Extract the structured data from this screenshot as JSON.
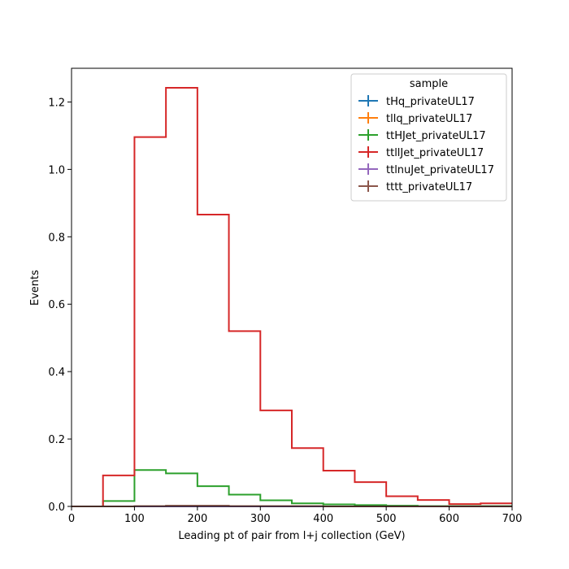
{
  "chart_data": {
    "type": "histogram-step",
    "xlabel": "Leading pt of pair from l+j collection (GeV)",
    "ylabel": "Events",
    "xlim": [
      0,
      700
    ],
    "ylim": [
      0,
      1.3
    ],
    "xticks": [
      0,
      100,
      200,
      300,
      400,
      500,
      600,
      700
    ],
    "yticks": [
      0.0,
      0.2,
      0.4,
      0.6,
      0.8,
      1.0,
      1.2
    ],
    "bin_edges": [
      0,
      50,
      100,
      150,
      200,
      250,
      300,
      350,
      400,
      450,
      500,
      550,
      600,
      650,
      700
    ],
    "legend_title": "sample",
    "legend_position": "upper right",
    "grid": false,
    "series": [
      {
        "name": "tHq_privateUL17",
        "color": "#1f77b4",
        "values": [
          0,
          0,
          0,
          0,
          0,
          0,
          0,
          0,
          0,
          0,
          0,
          0,
          0,
          0
        ]
      },
      {
        "name": "tllq_privateUL17",
        "color": "#ff7f0e",
        "values": [
          0,
          0,
          0,
          0,
          0,
          0,
          0,
          0,
          0,
          0,
          0,
          0,
          0,
          0
        ]
      },
      {
        "name": "ttHJet_privateUL17",
        "color": "#2ca02c",
        "values": [
          0,
          0.016,
          0.108,
          0.098,
          0.06,
          0.035,
          0.018,
          0.009,
          0.006,
          0.004,
          0.002,
          0.001,
          0.001,
          0.001
        ]
      },
      {
        "name": "ttllJet_privateUL17",
        "color": "#d62728",
        "values": [
          0,
          0.092,
          1.096,
          1.242,
          0.866,
          0.52,
          0.285,
          0.173,
          0.106,
          0.072,
          0.03,
          0.019,
          0.007,
          0.009
        ]
      },
      {
        "name": "ttlnuJet_privateUL17",
        "color": "#9467bd",
        "values": [
          0,
          0,
          0,
          0,
          0,
          0,
          0,
          0,
          0,
          0,
          0,
          0,
          0,
          0
        ]
      },
      {
        "name": "tttt_privateUL17",
        "color": "#8c564b",
        "values": [
          0,
          0,
          0.001,
          0.002,
          0.002,
          0.001,
          0.001,
          0.001,
          0,
          0,
          0,
          0,
          0,
          0
        ]
      }
    ]
  }
}
